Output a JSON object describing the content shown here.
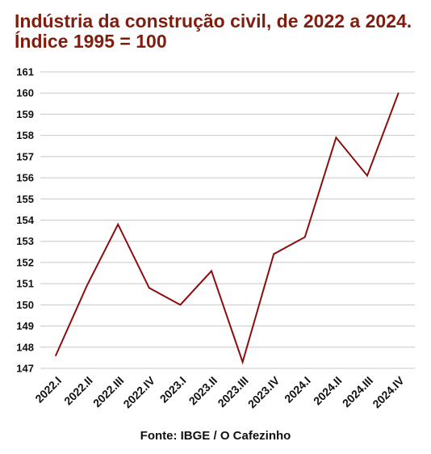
{
  "chart_data": {
    "type": "line",
    "title": "Indústria da construção civil, de 2022 a 2024. Índice 1995 = 100",
    "categories": [
      "2022.I",
      "2022.II",
      "2022.III",
      "2022.IV",
      "2023.I",
      "2023.II",
      "2023.III",
      "2023.IV",
      "2024.I",
      "2024.II",
      "2024.III",
      "2024.IV"
    ],
    "series": [
      {
        "values": [
          147.6,
          150.9,
          153.8,
          150.8,
          150.0,
          151.6,
          147.3,
          152.4,
          153.2,
          157.9,
          156.1,
          160.0
        ],
        "color": "#8b0d0d"
      }
    ],
    "yticks": [
      147,
      148,
      149,
      150,
      151,
      152,
      153,
      154,
      155,
      156,
      157,
      158,
      159,
      160,
      161
    ],
    "ylim": [
      147,
      161
    ],
    "xlabel": "",
    "ylabel": "",
    "grid": true,
    "source": "Fonte: IBGE / O Cafezinho"
  },
  "colors": {
    "title": "#7f1d0f",
    "line": "#8b0d0d",
    "grid": "#c8c8c8"
  }
}
